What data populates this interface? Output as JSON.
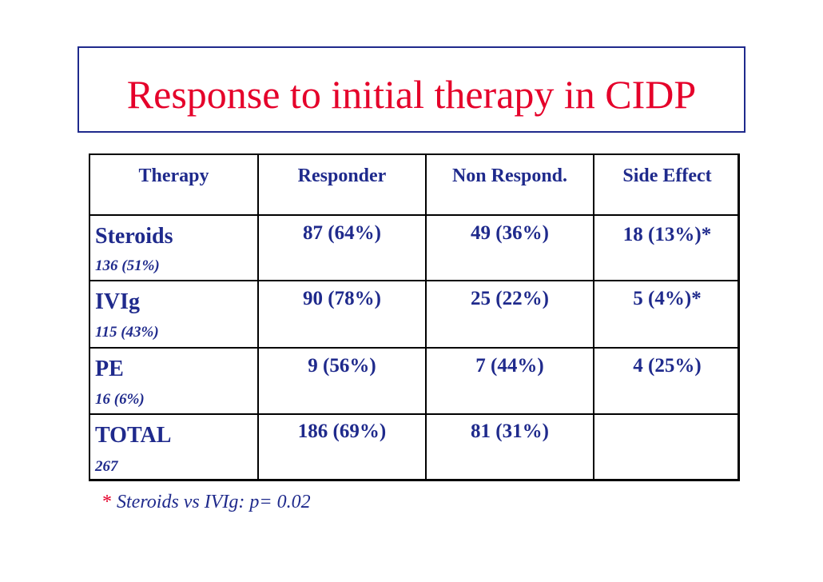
{
  "title": "Response to initial therapy in CIDP",
  "table": {
    "headers": [
      "Therapy",
      "Responder",
      "Non Respond.",
      "Side Effect"
    ],
    "rows": [
      {
        "therapy": "Steroids",
        "count": "136 (51%)",
        "responder": "87 (64%)",
        "non_respond": "49 (36%)",
        "side_effect": "18 (13%)*"
      },
      {
        "therapy": "IVIg",
        "count": "115 (43%)",
        "responder": "90 (78%)",
        "non_respond": "25 (22%)",
        "side_effect": "5 (4%)*"
      },
      {
        "therapy": "PE",
        "count": "16 (6%)",
        "responder": "9 (56%)",
        "non_respond": "7 (44%)",
        "side_effect": "4 (25%)"
      },
      {
        "therapy": "TOTAL",
        "count": "267",
        "responder": "186 (69%)",
        "non_respond": "81 (31%)",
        "side_effect": ""
      }
    ]
  },
  "footnote": {
    "star": "*",
    "text": " Steroids vs IVIg: p= 0.02"
  },
  "colors": {
    "title": "#e5002a",
    "text": "#1f2a8c",
    "border": "#000000"
  }
}
